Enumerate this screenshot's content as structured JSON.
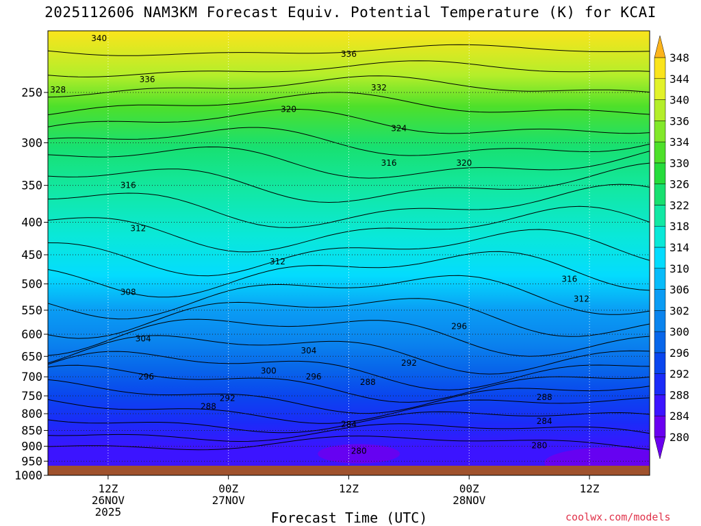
{
  "header": {
    "title": "2025112606 NAM3KM Forecast Equiv. Potential Temperature (K) for KCAI"
  },
  "footer": {
    "xlabel": "Forecast Time (UTC)",
    "credit": "coolwx.com/models"
  },
  "chart_data": {
    "type": "heatmap",
    "subtype": "filled contour time-height cross section",
    "title": "2025112606 NAM3KM Forecast Equiv. Potential Temperature (K) for KCAI",
    "xlabel": "Forecast Time (UTC)",
    "ylabel": "",
    "y_axis": {
      "scale": "log-pressure",
      "inverted": true,
      "ticks": [
        250,
        300,
        350,
        400,
        450,
        500,
        550,
        600,
        650,
        700,
        750,
        800,
        850,
        900,
        950,
        1000
      ],
      "range": [
        1000,
        200
      ]
    },
    "x_axis": {
      "range_hours": [
        0,
        60
      ],
      "ticks": [
        {
          "hour": 6,
          "lines": [
            "12Z",
            "26NOV",
            "2025"
          ]
        },
        {
          "hour": 18,
          "lines": [
            "00Z",
            "27NOV"
          ]
        },
        {
          "hour": 30,
          "lines": [
            "12Z"
          ]
        },
        {
          "hour": 42,
          "lines": [
            "00Z",
            "28NOV"
          ]
        },
        {
          "hour": 54,
          "lines": [
            "12Z"
          ]
        }
      ]
    },
    "grid": "dotted",
    "colorbar": {
      "levels": [
        280,
        284,
        288,
        292,
        296,
        300,
        302,
        306,
        310,
        314,
        318,
        322,
        326,
        330,
        334,
        336,
        340,
        344,
        348
      ],
      "colors": [
        "#6a00f0",
        "#3c14ff",
        "#1a2cf8",
        "#0a46ee",
        "#0866ea",
        "#0a84ee",
        "#0a9cf4",
        "#08bcfa",
        "#04dcfe",
        "#0ae8d8",
        "#12e8a4",
        "#18e070",
        "#26dc3c",
        "#4ee02a",
        "#82e82a",
        "#b4ee2a",
        "#e2f22a",
        "#fae41c",
        "#fcb41c"
      ],
      "extend": "both"
    },
    "contour_labels": [
      {
        "value": "340",
        "hour": 5.1,
        "p": 205
      },
      {
        "value": "336",
        "hour": 9.9,
        "p": 238
      },
      {
        "value": "328",
        "hour": 1.0,
        "p": 247
      },
      {
        "value": "336",
        "hour": 30.0,
        "p": 217
      },
      {
        "value": "332",
        "hour": 33.0,
        "p": 245
      },
      {
        "value": "320",
        "hour": 24.0,
        "p": 265
      },
      {
        "value": "324",
        "hour": 35.0,
        "p": 284
      },
      {
        "value": "316",
        "hour": 34.0,
        "p": 322
      },
      {
        "value": "320",
        "hour": 41.5,
        "p": 322
      },
      {
        "value": "316",
        "hour": 8.0,
        "p": 349
      },
      {
        "value": "312",
        "hour": 9.0,
        "p": 408
      },
      {
        "value": "312",
        "hour": 22.9,
        "p": 460
      },
      {
        "value": "316",
        "hour": 52.0,
        "p": 490
      },
      {
        "value": "312",
        "hour": 53.2,
        "p": 527
      },
      {
        "value": "308",
        "hour": 8.0,
        "p": 514
      },
      {
        "value": "304",
        "hour": 9.5,
        "p": 608
      },
      {
        "value": "304",
        "hour": 26.0,
        "p": 635
      },
      {
        "value": "300",
        "hour": 22.0,
        "p": 683
      },
      {
        "value": "296",
        "hour": 26.5,
        "p": 698
      },
      {
        "value": "296",
        "hour": 9.8,
        "p": 698
      },
      {
        "value": "296",
        "hour": 41.0,
        "p": 582
      },
      {
        "value": "292",
        "hour": 36.0,
        "p": 664
      },
      {
        "value": "292",
        "hour": 17.9,
        "p": 755
      },
      {
        "value": "288",
        "hour": 16.0,
        "p": 777
      },
      {
        "value": "288",
        "hour": 31.9,
        "p": 712
      },
      {
        "value": "288",
        "hour": 49.5,
        "p": 752
      },
      {
        "value": "284",
        "hour": 30.0,
        "p": 829
      },
      {
        "value": "284",
        "hour": 49.5,
        "p": 820
      },
      {
        "value": "280",
        "hour": 31.0,
        "p": 913
      },
      {
        "value": "280",
        "hour": 49.0,
        "p": 896
      }
    ],
    "surface_band": "brown"
  }
}
